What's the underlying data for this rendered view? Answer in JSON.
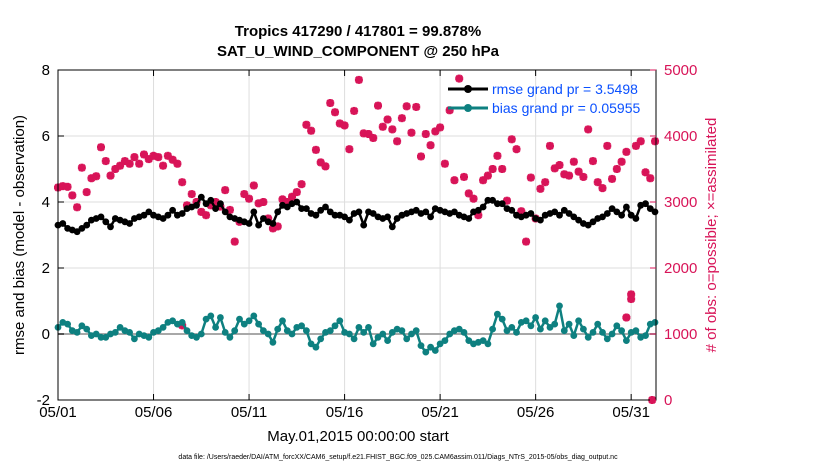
{
  "chart_data": {
    "type": "line",
    "title": "Tropics 417290 / 417801 = 99.878%",
    "subtitle": "SAT_U_WIND_COMPONENT @ 250 hPa",
    "xlabel": "May.01,2015 00:00:00 start",
    "ylabel": "rmse and bias (model - observation)",
    "y2label": "# of obs: o=possible; ×=assimilated",
    "footnote": "data file: /Users/raeder/DAI/ATM_forcXX/CAM6_setup/f.e21.FHIST_BGC.f09_025.CAM6assim.011/Diags_NTrS_2015-05/obs_diag_output.nc",
    "xlim": [
      1,
      32.3
    ],
    "ylim": [
      -2,
      8
    ],
    "y2lim": [
      0,
      5000
    ],
    "x_ticks": [
      1,
      6,
      11,
      16,
      21,
      26,
      31
    ],
    "x_tick_labels": [
      "05/01",
      "05/06",
      "05/11",
      "05/16",
      "05/21",
      "05/26",
      "05/31"
    ],
    "y_ticks": [
      "-2",
      "0",
      "2",
      "4",
      "6",
      "8"
    ],
    "y2_ticks": [
      "0",
      "1000",
      "2000",
      "3000",
      "4000",
      "5000"
    ],
    "grid": true,
    "legend": [
      "rmse grand pr = 3.5498",
      "bias grand pr = 0.05955"
    ],
    "legend_position": "top-right",
    "colors": {
      "rmse": "#000000",
      "bias": "#0e8080",
      "obs": "#d81458",
      "zero_line": "#a8a8a8",
      "grid": "#dedede"
    },
    "x_step_days": 0.25,
    "x_start": 1.0,
    "series": [
      {
        "name": "rmse",
        "values": [
          3.3,
          3.35,
          3.2,
          3.15,
          3.1,
          3.2,
          3.3,
          3.45,
          3.5,
          3.55,
          3.4,
          3.25,
          3.5,
          3.45,
          3.4,
          3.35,
          3.5,
          3.55,
          3.6,
          3.7,
          3.6,
          3.55,
          3.5,
          3.6,
          3.75,
          3.6,
          3.65,
          3.8,
          3.85,
          3.9,
          4.15,
          3.95,
          4.05,
          3.8,
          3.95,
          3.7,
          3.55,
          3.5,
          3.45,
          3.4,
          3.35,
          3.7,
          3.3,
          3.5,
          3.4,
          3.35,
          3.7,
          3.9,
          3.85,
          3.95,
          4.0,
          3.8,
          3.8,
          3.65,
          3.6,
          3.75,
          3.85,
          3.7,
          3.6,
          3.6,
          3.55,
          3.45,
          3.65,
          3.7,
          3.3,
          3.7,
          3.65,
          3.55,
          3.5,
          3.55,
          3.25,
          3.5,
          3.6,
          3.65,
          3.7,
          3.75,
          3.65,
          3.7,
          3.55,
          3.8,
          3.75,
          3.7,
          3.65,
          3.7,
          3.6,
          3.55,
          3.5,
          3.7,
          3.75,
          3.85,
          4.05,
          4.05,
          3.95,
          3.95,
          3.8,
          3.75,
          3.6,
          3.55,
          3.6,
          3.65,
          3.5,
          3.45,
          3.6,
          3.65,
          3.7,
          3.6,
          3.75,
          3.65,
          3.55,
          3.45,
          3.35,
          3.3,
          3.4,
          3.5,
          3.55,
          3.65,
          3.8,
          3.7,
          3.6,
          3.85,
          3.6,
          3.5,
          3.9,
          3.95,
          3.8,
          3.7,
          3.6,
          3.55,
          3.6,
          3.5,
          3.4,
          3.55,
          3.65,
          3.6,
          3.45,
          3.4,
          3.55,
          3.65,
          3.5,
          3.35,
          3.2,
          3.1,
          3.3,
          3.5,
          3.6,
          3.75,
          3.5,
          3.3,
          3.25,
          3.25,
          3.35
        ]
      },
      {
        "name": "bias",
        "values": [
          0.2,
          0.35,
          0.3,
          0.1,
          0.05,
          0.25,
          0.15,
          -0.05,
          0.0,
          -0.1,
          -0.1,
          0.0,
          0.05,
          0.2,
          0.1,
          0.05,
          -0.15,
          0.0,
          -0.05,
          -0.1,
          0.05,
          0.1,
          0.2,
          0.35,
          0.4,
          0.3,
          0.35,
          0.1,
          -0.05,
          -0.1,
          0.0,
          0.45,
          0.55,
          0.2,
          0.5,
          0.05,
          -0.1,
          0.1,
          0.45,
          0.3,
          0.4,
          0.55,
          0.3,
          0.1,
          0.0,
          -0.25,
          0.15,
          0.4,
          0.1,
          0.0,
          0.2,
          0.25,
          0.1,
          -0.3,
          -0.4,
          -0.15,
          0.05,
          0.1,
          0.25,
          0.4,
          0.05,
          0.0,
          -0.15,
          0.2,
          0.05,
          0.2,
          -0.3,
          -0.1,
          0.0,
          -0.2,
          0.05,
          0.15,
          0.1,
          -0.15,
          0.0,
          0.1,
          -0.35,
          -0.55,
          -0.4,
          -0.5,
          -0.3,
          -0.2,
          0.0,
          0.1,
          0.15,
          0.05,
          -0.2,
          -0.3,
          -0.25,
          -0.2,
          -0.3,
          0.15,
          0.6,
          0.45,
          0.1,
          0.2,
          0.05,
          0.35,
          0.4,
          0.25,
          0.5,
          0.15,
          0.4,
          0.2,
          0.3,
          0.85,
          0.1,
          0.3,
          -0.05,
          0.4,
          0.15,
          -0.1,
          0.05,
          0.3,
          0.05,
          -0.15,
          0.0,
          0.25,
          0.1,
          -0.2,
          0.05,
          0.1,
          -0.1,
          -0.05,
          0.3,
          0.35,
          0.15,
          0.55,
          0.3,
          0.1,
          -0.25,
          0.05,
          -0.3,
          0.25,
          0.1,
          0.0,
          0.15,
          0.05,
          -0.1,
          0.1,
          -0.15,
          0.15,
          0.0,
          -0.2,
          0.0,
          0.1,
          0.05,
          -0.1,
          0.0,
          -0.1,
          0.25,
          0.15,
          0.2
        ]
      },
      {
        "name": "obs_assimilated",
        "values": [
          3220,
          3240,
          3230,
          3100,
          2920,
          3520,
          3150,
          3360,
          3390,
          3830,
          3620,
          3400,
          3500,
          3550,
          3620,
          3580,
          3680,
          3580,
          3720,
          3650,
          3700,
          3680,
          3550,
          3700,
          3640,
          3580,
          3300,
          2950,
          3120,
          3000,
          2850,
          2800,
          2950,
          3000,
          2930,
          3180,
          2880,
          2400,
          2700,
          3120,
          3050,
          3250,
          2980,
          3000,
          2750,
          2600,
          2630,
          3040,
          3000,
          3080,
          3150,
          3270,
          4170,
          4080,
          3790,
          3600,
          3540,
          4500,
          4360,
          4190,
          4160,
          3800,
          4380,
          4850,
          4040,
          4030,
          3970,
          4460,
          4140,
          4250,
          4100,
          3920,
          4270,
          4450,
          4050,
          4440,
          3690,
          4030,
          3860,
          4070,
          4130,
          3580,
          4390,
          3330,
          4870,
          3380,
          3130,
          3050,
          2800,
          3330,
          3400,
          3500,
          3700,
          3500,
          3020,
          3950,
          3800,
          2860,
          2400,
          3370,
          2750,
          3200,
          3300,
          3850,
          3510,
          3560,
          3420,
          3400,
          3610,
          3460,
          3380,
          4100,
          3620,
          3300,
          3210,
          3850,
          3350,
          3500,
          3610,
          3760,
          1600,
          3850,
          3920,
          3450,
          3360,
          3920,
          4240,
          3590,
          3600,
          3780,
          3730,
          3220,
          3880,
          3660,
          3330,
          3300,
          3610,
          2750,
          3630,
          3120,
          3200,
          2100,
          3300,
          3150,
          3230,
          3530,
          3280,
          3660,
          3550,
          3790,
          3190,
          3400,
          3690,
          3680,
          2600,
          3400,
          1300,
          1100,
          3550,
          4760,
          4610
        ]
      },
      {
        "name": "obs_possible_extra",
        "x": [
          7.5,
          30.75,
          31.0,
          32.1
        ],
        "values": [
          1130,
          1250,
          1530,
          0
        ]
      }
    ]
  }
}
